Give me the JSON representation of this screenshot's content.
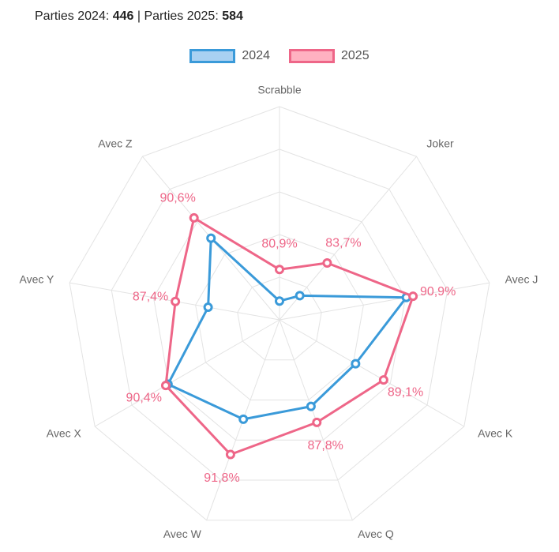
{
  "header": {
    "label_2024": "Parties 2024: ",
    "value_2024": "446",
    "separator": " | ",
    "label_2025": "Parties 2025: ",
    "value_2025": "584"
  },
  "legend": [
    {
      "label": "2024",
      "stroke": "#3a9ad9",
      "fill": "#a9d1f2"
    },
    {
      "label": "2025",
      "stroke": "#ee6688",
      "fill": "#ffb1c1"
    }
  ],
  "chart_data": {
    "type": "radar",
    "categories": [
      "Scrabble",
      "Joker",
      "Avec J",
      "Avec K",
      "Avec Q",
      "Avec W",
      "Avec X",
      "Avec Y",
      "Avec Z"
    ],
    "scale": {
      "min": 75,
      "max": 100,
      "ticks": [
        75,
        80,
        85,
        90,
        95,
        100
      ],
      "grid": true
    },
    "series": [
      {
        "name": "2024",
        "color": "#3a9ad9",
        "values": [
          77.2,
          78.7,
          90.1,
          85.3,
          85.8,
          87.4,
          90.1,
          83.5,
          87.5
        ]
      },
      {
        "name": "2025",
        "color": "#ee6688",
        "values": [
          80.9,
          83.7,
          90.9,
          89.1,
          87.8,
          91.8,
          90.4,
          87.4,
          90.6
        ],
        "data_labels": [
          "80,9%",
          "83,7%",
          "90,9%",
          "89,1%",
          "87,8%",
          "91,8%",
          "90,4%",
          "87,4%",
          "90,6%"
        ]
      }
    ]
  }
}
